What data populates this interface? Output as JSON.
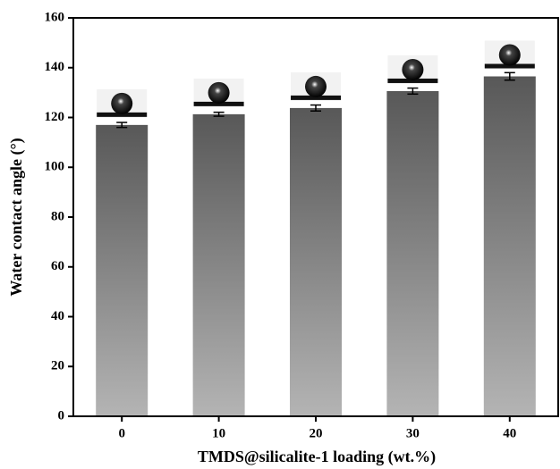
{
  "chart_data": {
    "type": "bar",
    "x_label": "TMDS@silicalite-1 loading (wt.%)",
    "y_label": "Water contact angle (°)",
    "categories": [
      "0",
      "10",
      "20",
      "30",
      "40"
    ],
    "values": [
      117,
      121.3,
      123.8,
      130.6,
      136.5
    ],
    "errors": [
      1,
      0.8,
      1.2,
      1.2,
      1.5
    ],
    "color": "#585858",
    "ylim": [
      0,
      160
    ],
    "yticks": [
      0,
      20,
      40,
      60,
      80,
      100,
      120,
      140,
      160
    ]
  }
}
